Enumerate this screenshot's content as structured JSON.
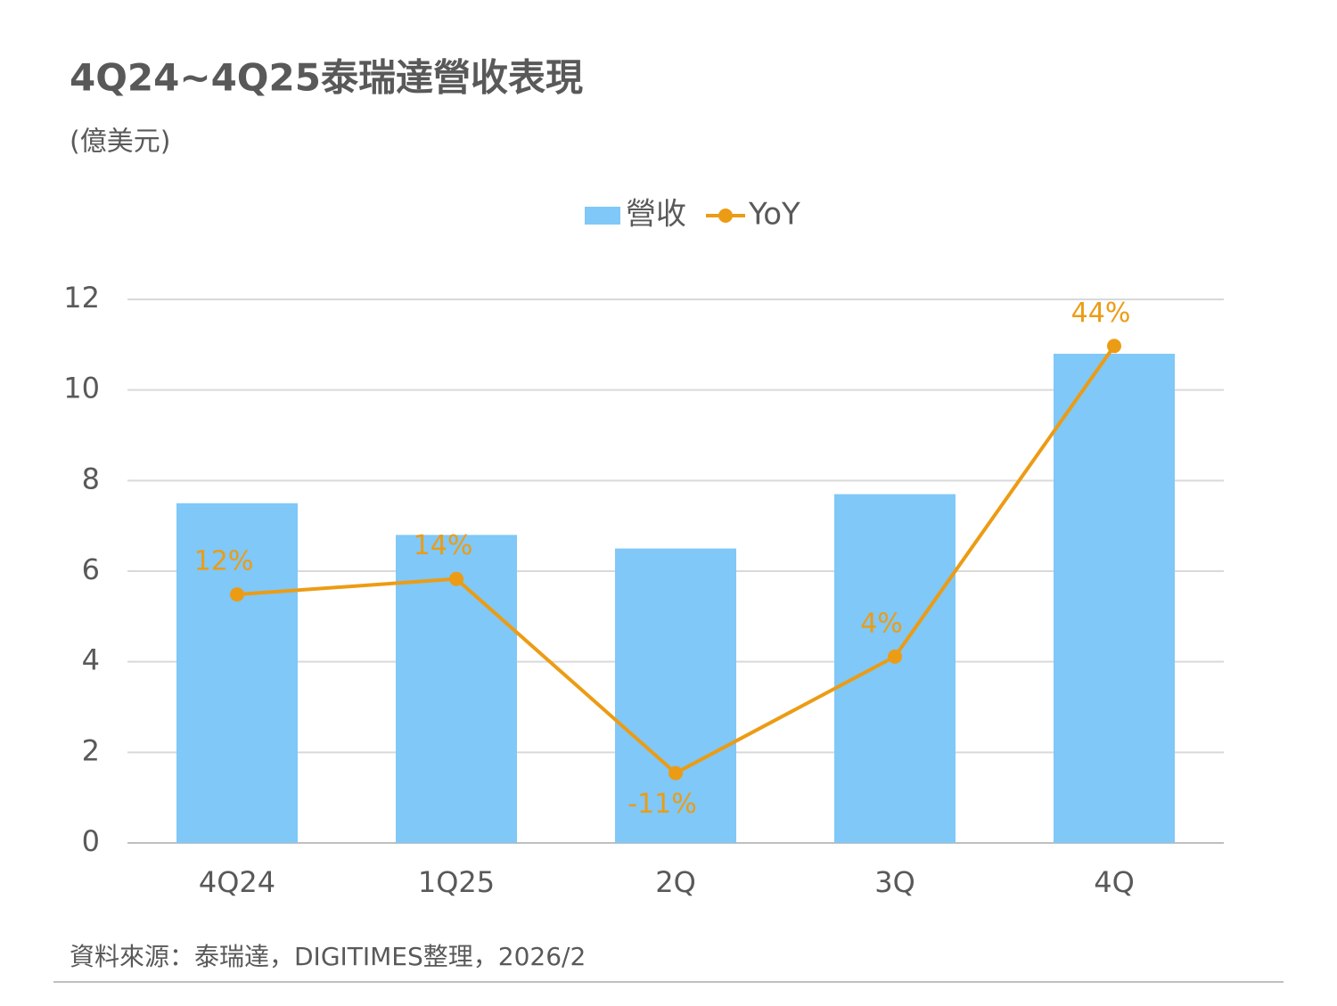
{
  "chart_data": {
    "type": "bar",
    "title": "4Q24~4Q25泰瑞達營收表現",
    "subtitle": "(億美元)",
    "source": "資料來源：泰瑞達，DIGITIMES整理，2026/2",
    "categories": [
      "4Q24",
      "1Q25",
      "2Q",
      "3Q",
      "4Q"
    ],
    "series": [
      {
        "name": "營收",
        "type": "bar",
        "color": "#7fc8f8",
        "values": [
          7.5,
          6.8,
          6.5,
          7.7,
          10.8
        ]
      },
      {
        "name": "YoY",
        "type": "line",
        "axis": "y2",
        "color": "#ec9c14",
        "values": [
          12,
          14,
          -11,
          4,
          44
        ],
        "value_labels": [
          "12%",
          "14%",
          "-11%",
          "4%",
          "44%"
        ]
      }
    ],
    "ylim": [
      0,
      12
    ],
    "yticks": [
      0,
      2,
      4,
      6,
      8,
      10,
      12
    ],
    "y2lim": [
      -20,
      50
    ],
    "grid": true,
    "legend": "top"
  }
}
